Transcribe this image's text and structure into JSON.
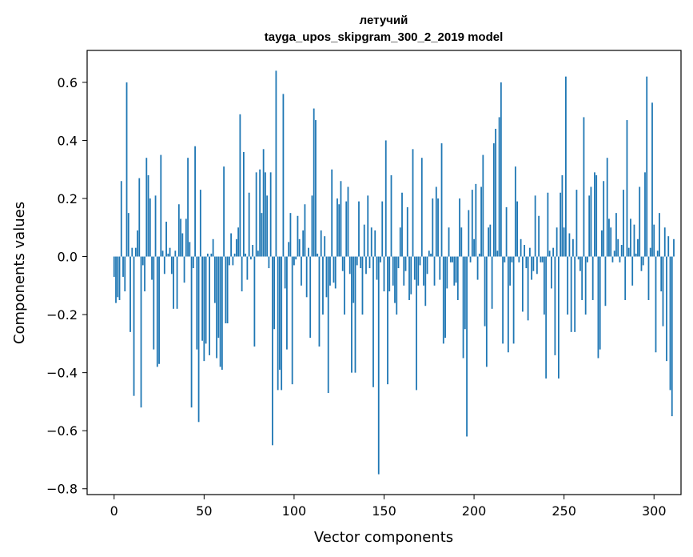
{
  "chart_data": {
    "type": "bar",
    "title_line1": "летучий",
    "title_line2": "tayga_upos_skipgram_300_2_2019 model",
    "xlabel": "Vector components",
    "ylabel": "Components values",
    "xlim": [
      -15,
      315
    ],
    "ylim": [
      -0.82,
      0.71
    ],
    "xticks": [
      0,
      50,
      100,
      150,
      200,
      250,
      300
    ],
    "xtick_labels": [
      "0",
      "50",
      "100",
      "150",
      "200",
      "250",
      "300"
    ],
    "yticks": [
      -0.8,
      -0.6,
      -0.4,
      -0.2,
      0.0,
      0.2,
      0.4,
      0.6
    ],
    "ytick_labels": [
      "−0.8",
      "−0.6",
      "−0.4",
      "−0.2",
      "0.0",
      "0.2",
      "0.4",
      "0.6"
    ],
    "bar_color": "#1f77b4",
    "values": [
      -0.07,
      -0.16,
      -0.14,
      -0.15,
      0.26,
      -0.07,
      -0.12,
      0.6,
      0.15,
      -0.26,
      0.03,
      -0.48,
      0.03,
      0.09,
      0.27,
      -0.52,
      -0.03,
      -0.12,
      0.34,
      0.28,
      0.2,
      -0.08,
      -0.32,
      0.21,
      -0.38,
      -0.37,
      0.35,
      0.02,
      -0.06,
      0.12,
      0.01,
      0.03,
      -0.06,
      -0.18,
      0.02,
      -0.18,
      0.18,
      0.13,
      0.08,
      -0.09,
      0.13,
      0.34,
      0.05,
      -0.52,
      -0.04,
      0.38,
      -0.32,
      -0.57,
      0.23,
      -0.29,
      -0.36,
      -0.3,
      0.01,
      -0.34,
      0.01,
      0.06,
      -0.16,
      -0.35,
      -0.28,
      -0.38,
      -0.39,
      0.31,
      -0.23,
      -0.23,
      -0.03,
      0.08,
      -0.03,
      0.01,
      0.06,
      0.1,
      0.49,
      -0.12,
      0.36,
      0.01,
      -0.08,
      0.22,
      -0.01,
      0.04,
      -0.31,
      0.29,
      0.02,
      0.3,
      0.15,
      0.37,
      0.29,
      0.21,
      -0.04,
      0.29,
      -0.65,
      -0.25,
      0.64,
      -0.46,
      -0.39,
      -0.46,
      0.56,
      -0.11,
      -0.32,
      0.05,
      0.15,
      -0.44,
      -0.03,
      -0.01,
      0.14,
      0.06,
      -0.1,
      0.09,
      0.18,
      -0.14,
      0.03,
      -0.28,
      0.21,
      0.51,
      0.47,
      0.01,
      -0.31,
      0.09,
      -0.2,
      0.07,
      -0.14,
      -0.47,
      -0.1,
      0.3,
      -0.09,
      -0.11,
      0.2,
      0.18,
      0.26,
      -0.05,
      -0.2,
      0.19,
      0.24,
      -0.06,
      -0.4,
      -0.16,
      -0.4,
      -0.03,
      0.19,
      -0.04,
      -0.2,
      0.11,
      -0.06,
      0.21,
      -0.04,
      0.1,
      -0.45,
      0.09,
      -0.08,
      -0.75,
      -0.02,
      0.19,
      -0.12,
      0.4,
      -0.44,
      -0.12,
      0.28,
      -0.1,
      -0.16,
      -0.2,
      -0.04,
      0.1,
      0.22,
      -0.1,
      -0.05,
      0.17,
      -0.15,
      -0.13,
      0.37,
      -0.08,
      -0.46,
      -0.1,
      -0.03,
      0.34,
      -0.1,
      -0.17,
      -0.06,
      0.02,
      0.01,
      0.2,
      -0.1,
      0.24,
      0.2,
      -0.08,
      0.39,
      -0.3,
      -0.28,
      -0.11,
      0.1,
      -0.02,
      -0.02,
      -0.1,
      -0.09,
      -0.15,
      0.2,
      0.1,
      -0.35,
      -0.25,
      -0.62,
      0.16,
      -0.02,
      0.23,
      0.06,
      0.25,
      -0.08,
      0.01,
      0.24,
      0.35,
      -0.24,
      -0.38,
      0.1,
      0.11,
      -0.18,
      0.39,
      0.44,
      0.02,
      0.48,
      0.6,
      -0.3,
      -0.02,
      0.17,
      -0.33,
      -0.1,
      -0.02,
      -0.3,
      0.31,
      0.19,
      -0.02,
      0.06,
      -0.19,
      0.04,
      -0.04,
      -0.22,
      0.03,
      -0.08,
      -0.05,
      0.21,
      -0.06,
      0.14,
      -0.02,
      -0.02,
      -0.2,
      -0.42,
      0.22,
      0.02,
      -0.11,
      0.03,
      -0.34,
      0.1,
      -0.42,
      0.22,
      0.28,
      0.1,
      0.62,
      -0.2,
      0.08,
      -0.26,
      0.06,
      -0.26,
      0.23,
      -0.01,
      -0.05,
      -0.15,
      0.48,
      -0.2,
      -0.02,
      0.21,
      0.24,
      -0.15,
      0.29,
      0.28,
      -0.35,
      -0.32,
      0.09,
      0.26,
      -0.17,
      0.34,
      0.13,
      0.1,
      -0.02,
      0.02,
      0.15,
      0.06,
      -0.02,
      0.04,
      0.23,
      -0.15,
      0.47,
      0.03,
      0.13,
      -0.1,
      0.11,
      0.01,
      0.06,
      0.24,
      -0.05,
      -0.03,
      0.29,
      0.62,
      -0.15,
      0.03,
      0.53,
      0.11,
      -0.33,
      0.02,
      0.15,
      -0.12,
      -0.24,
      0.1,
      -0.36,
      0.07,
      -0.46,
      -0.55,
      0.06
    ]
  }
}
